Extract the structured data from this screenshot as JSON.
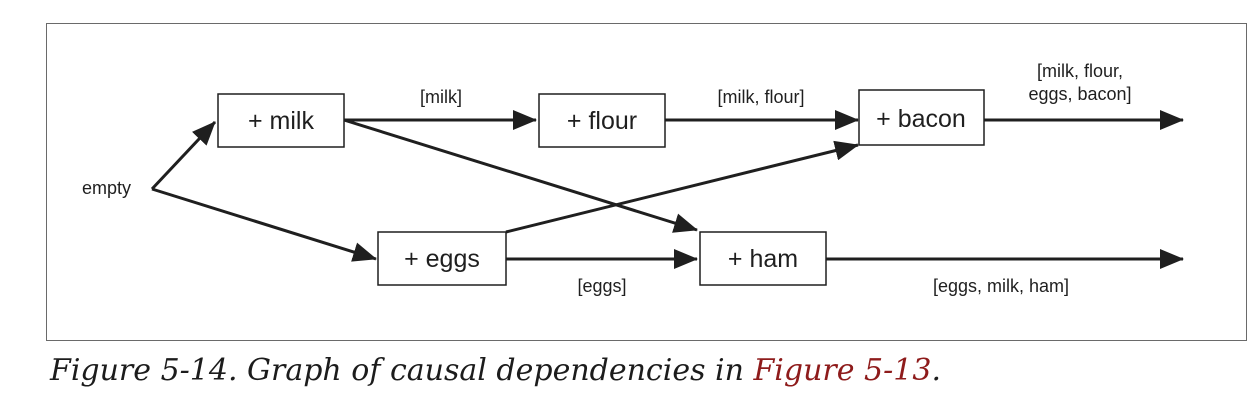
{
  "diagram": {
    "start_label": "empty",
    "nodes": {
      "milk": "+ milk",
      "flour": "+ flour",
      "bacon": "+ bacon",
      "eggs": "+ eggs",
      "ham": "+ ham"
    },
    "edge_labels": {
      "milk_to_flour": "[milk]",
      "flour_to_bacon": "[milk, flour]",
      "bacon_out": [
        "[milk, flour,",
        "eggs, bacon]"
      ],
      "eggs_to_ham": "[eggs]",
      "ham_out": "[eggs, milk, ham]"
    }
  },
  "caption": {
    "text": "Figure 5-14. Graph of causal dependencies in ",
    "link": "Figure 5-13",
    "suffix": "."
  },
  "colors": {
    "stroke": "#1f1f1f",
    "frame": "#6a6a6a",
    "link": "#8e1b1b"
  }
}
